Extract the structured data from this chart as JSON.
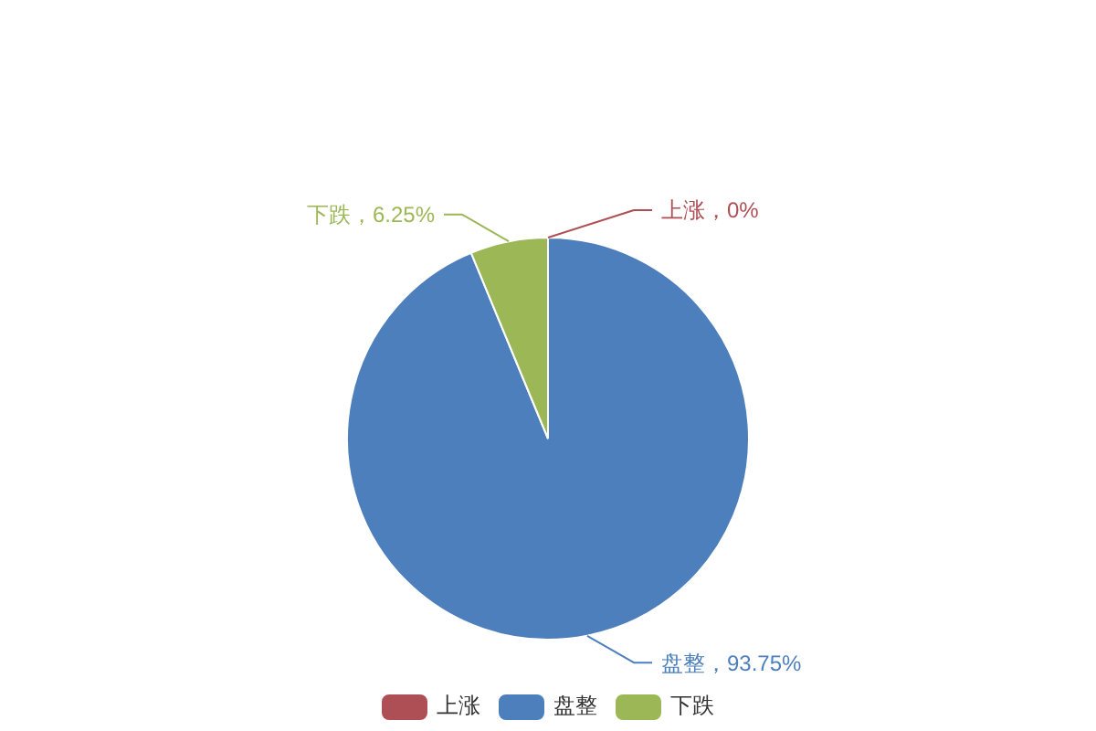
{
  "chart_data": {
    "type": "pie",
    "categories": [
      "上涨",
      "盘整",
      "下跌"
    ],
    "values": [
      0,
      93.75,
      6.25
    ],
    "colors": [
      "#ad4f55",
      "#4d7fbc",
      "#9bb756"
    ],
    "value_labels": [
      "上涨，0%",
      "盘整，93.75%",
      "下跌，6.25%"
    ],
    "legend": "bottom"
  }
}
